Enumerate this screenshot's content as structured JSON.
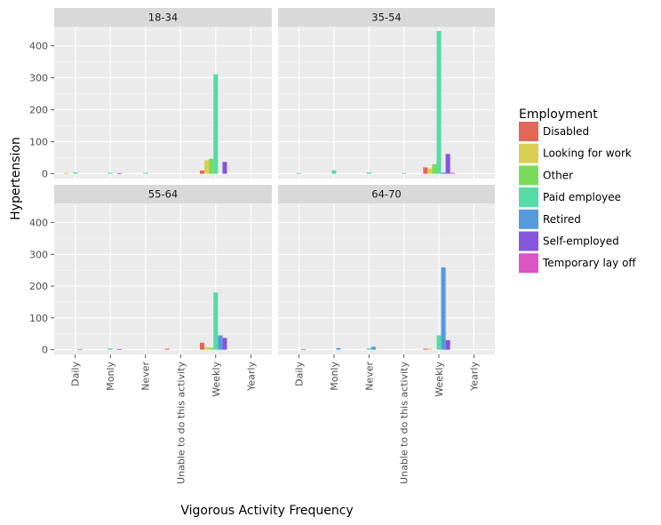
{
  "chart_data": {
    "type": "bar",
    "facet_type": "wrap 2x2",
    "xlabel": "Vigorous Activity Frequency",
    "ylabel": "Hypertension",
    "ylim": [
      -15,
      460
    ],
    "yticks": [
      0,
      100,
      200,
      300,
      400
    ],
    "categories": [
      "Daily",
      "Monly",
      "Never",
      "Unable to do this activity",
      "Weekly",
      "Yearly"
    ],
    "grid": true,
    "background": "#ebebeb",
    "legend": {
      "title": "Employment",
      "position": "right",
      "items": [
        {
          "name": "Disabled",
          "color": "#e16758"
        },
        {
          "name": "Looking for work",
          "color": "#d9cf52"
        },
        {
          "name": "Other",
          "color": "#78dc5a"
        },
        {
          "name": "Paid employee",
          "color": "#55dba6"
        },
        {
          "name": "Retired",
          "color": "#559bdc"
        },
        {
          "name": "Self-employed",
          "color": "#8556dc"
        },
        {
          "name": "Temporary lay off",
          "color": "#db55c6"
        }
      ]
    },
    "facets": [
      {
        "label": "18-34",
        "groups": [
          {
            "category": "Daily",
            "bars": [
              {
                "series": "Looking for work",
                "value": 2
              },
              {
                "series": "Paid employee",
                "value": 4
              }
            ]
          },
          {
            "category": "Monly",
            "bars": [
              {
                "series": "Paid employee",
                "value": 3
              },
              {
                "series": "Self-employed",
                "value": 2
              }
            ]
          },
          {
            "category": "Never",
            "bars": [
              {
                "series": "Paid employee",
                "value": 3
              }
            ]
          },
          {
            "category": "Weekly",
            "bars": [
              {
                "series": "Disabled",
                "value": 10
              },
              {
                "series": "Looking for work",
                "value": 42
              },
              {
                "series": "Other",
                "value": 47
              },
              {
                "series": "Paid employee",
                "value": 311
              },
              {
                "series": "Self-employed",
                "value": 37
              }
            ]
          }
        ]
      },
      {
        "label": "35-54",
        "groups": [
          {
            "category": "Daily",
            "bars": [
              {
                "series": "Paid employee",
                "value": 2
              }
            ]
          },
          {
            "category": "Monly",
            "bars": [
              {
                "series": "Paid employee",
                "value": 11
              }
            ]
          },
          {
            "category": "Never",
            "bars": [
              {
                "series": "Paid employee",
                "value": 4
              }
            ]
          },
          {
            "category": "Unable to do this activity",
            "bars": [
              {
                "series": "Paid employee",
                "value": 2
              }
            ]
          },
          {
            "category": "Weekly",
            "bars": [
              {
                "series": "Disabled",
                "value": 20
              },
              {
                "series": "Looking for work",
                "value": 16
              },
              {
                "series": "Other",
                "value": 30
              },
              {
                "series": "Paid employee",
                "value": 446
              },
              {
                "series": "Retired",
                "value": 4
              },
              {
                "series": "Self-employed",
                "value": 62
              },
              {
                "series": "Temporary lay off",
                "value": 3
              }
            ]
          }
        ]
      },
      {
        "label": "55-64",
        "groups": [
          {
            "category": "Daily",
            "bars": [
              {
                "series": "Retired",
                "value": 2
              }
            ]
          },
          {
            "category": "Monly",
            "bars": [
              {
                "series": "Paid employee",
                "value": 4
              },
              {
                "series": "Self-employed",
                "value": 2
              }
            ]
          },
          {
            "category": "Unable to do this activity",
            "bars": [
              {
                "series": "Disabled",
                "value": 3
              }
            ]
          },
          {
            "category": "Weekly",
            "bars": [
              {
                "series": "Disabled",
                "value": 22
              },
              {
                "series": "Looking for work",
                "value": 8
              },
              {
                "series": "Other",
                "value": 6
              },
              {
                "series": "Paid employee",
                "value": 180
              },
              {
                "series": "Retired",
                "value": 45
              },
              {
                "series": "Self-employed",
                "value": 37
              }
            ]
          }
        ]
      },
      {
        "label": "64-70",
        "groups": [
          {
            "category": "Daily",
            "bars": [
              {
                "series": "Retired",
                "value": 2
              }
            ]
          },
          {
            "category": "Monly",
            "bars": [
              {
                "series": "Retired",
                "value": 5
              }
            ]
          },
          {
            "category": "Never",
            "bars": [
              {
                "series": "Paid employee",
                "value": 4
              },
              {
                "series": "Retired",
                "value": 9
              }
            ]
          },
          {
            "category": "Weekly",
            "bars": [
              {
                "series": "Disabled",
                "value": 3
              },
              {
                "series": "Looking for work",
                "value": 3
              },
              {
                "series": "Paid employee",
                "value": 45
              },
              {
                "series": "Retired",
                "value": 259
              },
              {
                "series": "Self-employed",
                "value": 30
              }
            ]
          }
        ]
      }
    ]
  }
}
